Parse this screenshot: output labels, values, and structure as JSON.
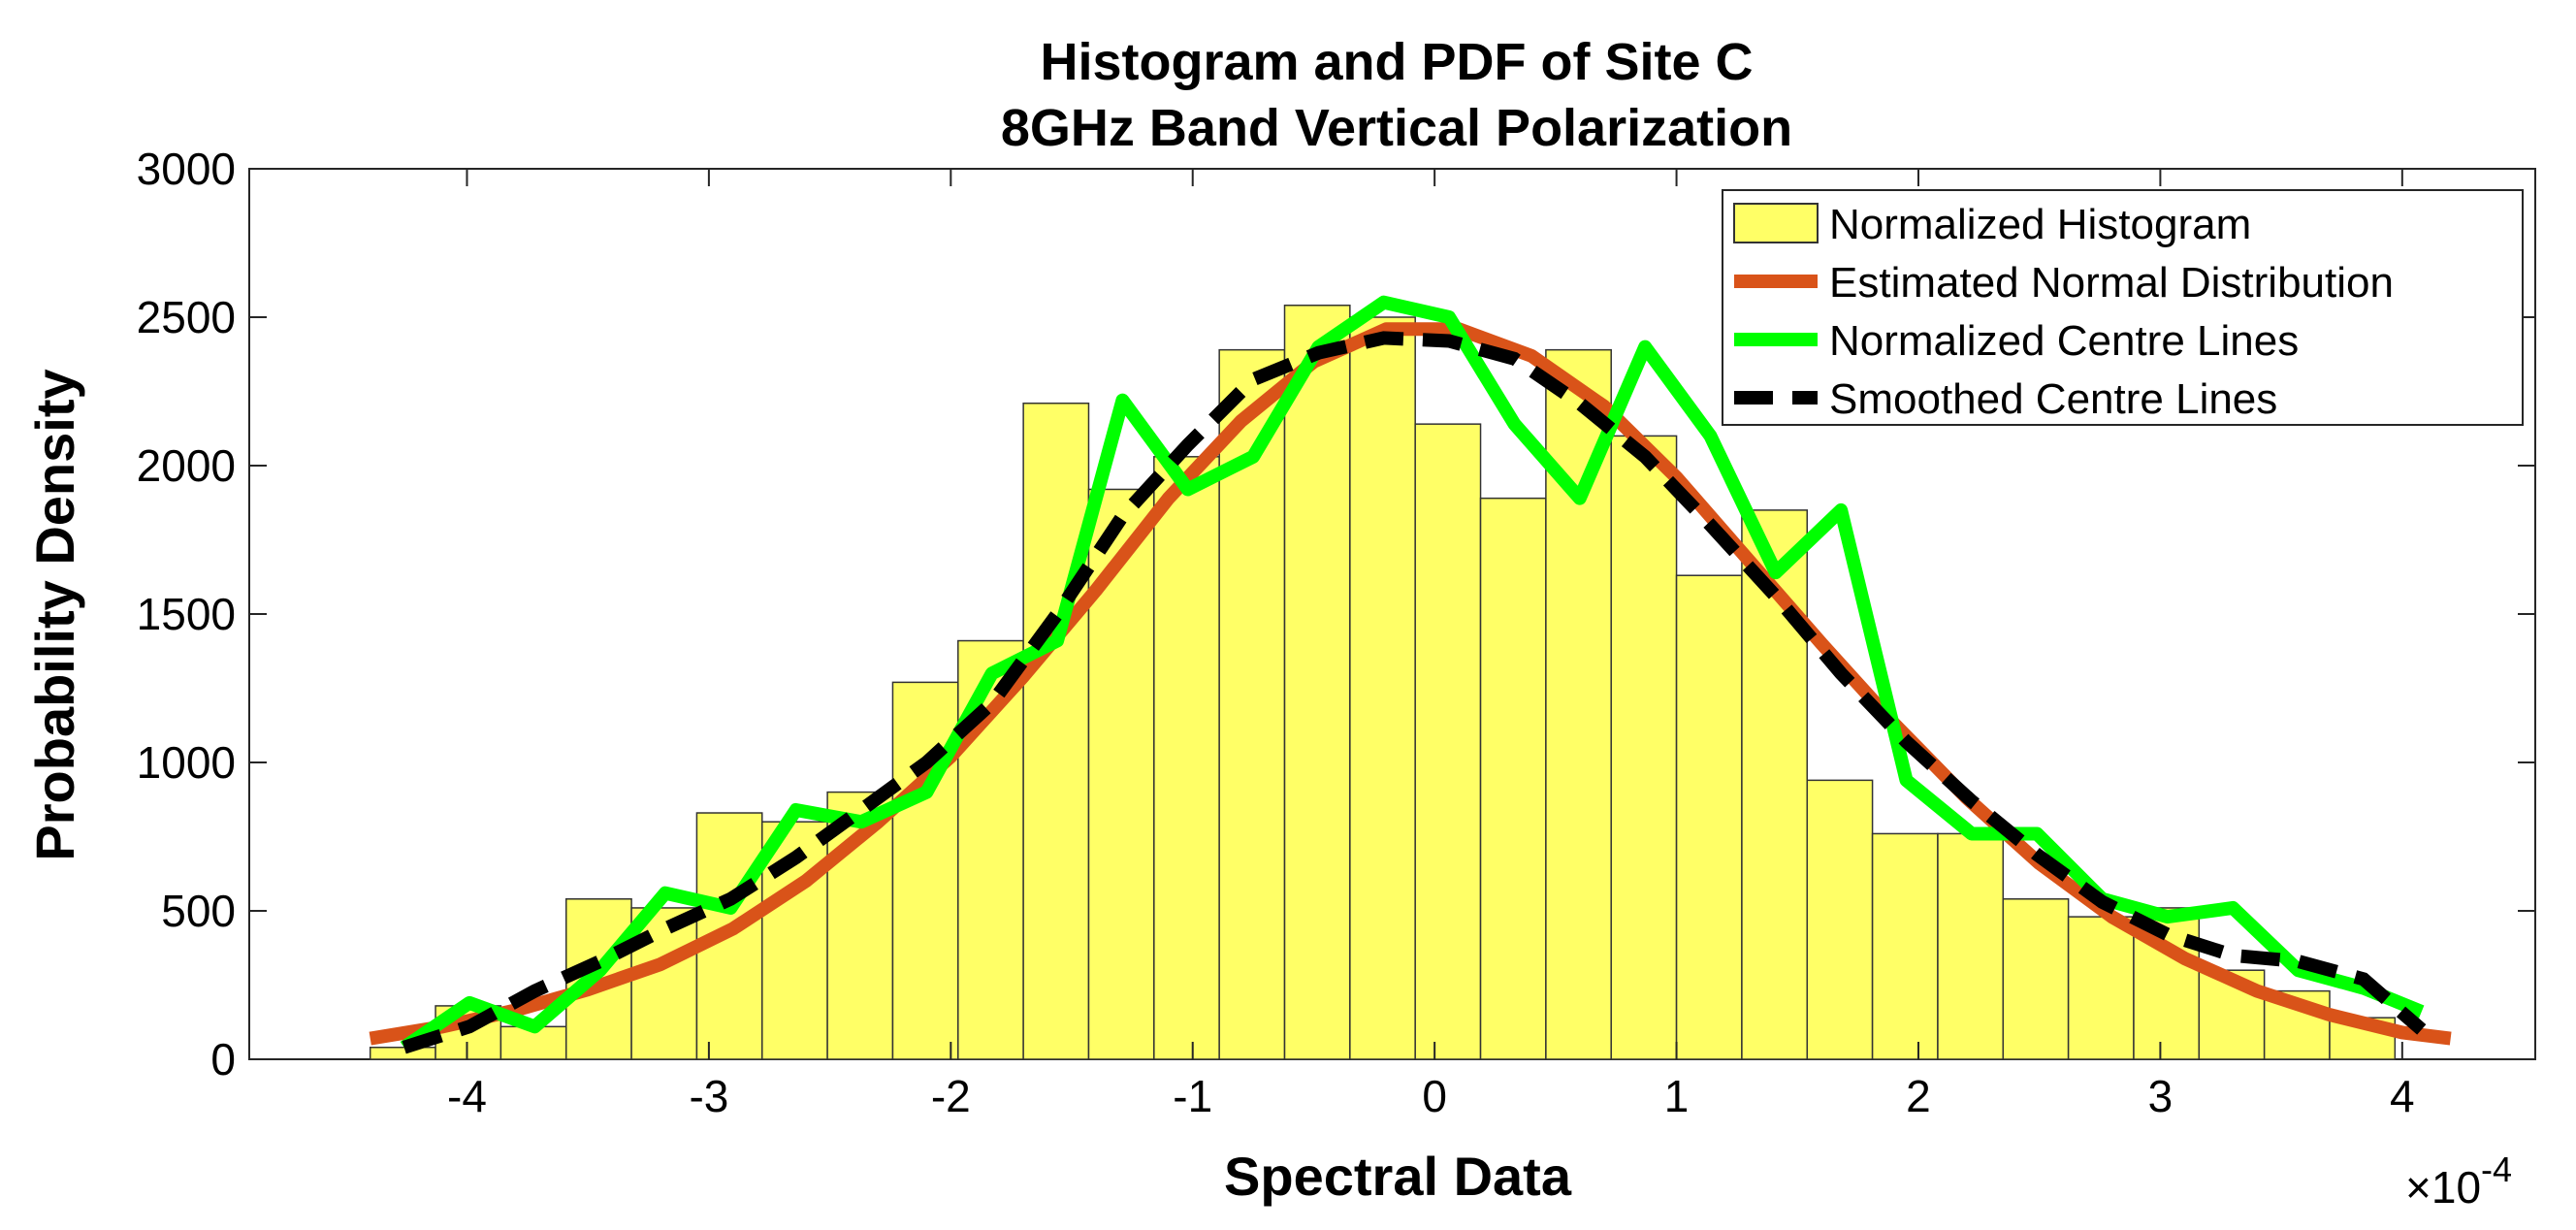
{
  "chart_data": {
    "type": "bar",
    "title": "Histogram and PDF of Site C",
    "subtitle": "8GHz Band Vertical Polarization",
    "xlabel": "Spectral Data",
    "ylabel": "Probability Density",
    "x_multiplier_base": "×10",
    "x_multiplier_exp": "-4",
    "xlim": [
      -4.9,
      4.55
    ],
    "ylim": [
      0,
      3000
    ],
    "xticks": [
      -4,
      -3,
      -2,
      -1,
      0,
      1,
      2,
      3,
      4
    ],
    "xtick_labels": [
      "-4",
      "-3",
      "-2",
      "-1",
      "0",
      "1",
      "2",
      "3",
      "4"
    ],
    "yticks": [
      0,
      500,
      1000,
      1500,
      2000,
      2500,
      3000
    ],
    "ytick_labels": [
      "0",
      "500",
      "1000",
      "1500",
      "2000",
      "2500",
      "3000"
    ],
    "grid": false,
    "legend_position": "top-right",
    "colors": {
      "histogram_fill": "#ffff66",
      "histogram_edge": "#333333",
      "normal": "#d95319",
      "centre": "#00ff00",
      "smoothed": "#000000"
    },
    "histogram": {
      "name": "Normalized Histogram",
      "bin_edges": [
        -4.4,
        -4.13,
        -3.86,
        -3.59,
        -3.32,
        -3.05,
        -2.78,
        -2.51,
        -2.24,
        -1.97,
        -1.7,
        -1.43,
        -1.16,
        -0.89,
        -0.62,
        -0.35,
        -0.08,
        0.19,
        0.46,
        0.73,
        1.0,
        1.27,
        1.54,
        1.81,
        2.08,
        2.35,
        2.62,
        2.89,
        3.16,
        3.43,
        3.7,
        3.97,
        4.24
      ],
      "values": [
        40,
        180,
        110,
        540,
        510,
        830,
        800,
        900,
        1270,
        1410,
        2210,
        1920,
        2030,
        2390,
        2540,
        2500,
        2140,
        1890,
        2390,
        2100,
        1630,
        1850,
        940,
        760,
        760,
        540,
        480,
        510,
        300,
        230,
        140,
        0
      ]
    },
    "series": [
      {
        "name": "Estimated Normal Distribution",
        "x": [
          -4.4,
          -4.1,
          -3.8,
          -3.5,
          -3.2,
          -2.9,
          -2.6,
          -2.3,
          -2.0,
          -1.7,
          -1.4,
          -1.1,
          -0.8,
          -0.5,
          -0.2,
          0.1,
          0.4,
          0.7,
          1.0,
          1.3,
          1.6,
          1.9,
          2.2,
          2.5,
          2.8,
          3.1,
          3.4,
          3.7,
          4.0,
          4.2
        ],
        "values": [
          70,
          110,
          165,
          235,
          320,
          440,
          600,
          800,
          1020,
          1290,
          1580,
          1890,
          2150,
          2350,
          2460,
          2460,
          2370,
          2200,
          1960,
          1680,
          1400,
          1130,
          880,
          660,
          480,
          340,
          230,
          150,
          90,
          70
        ]
      },
      {
        "name": "Normalized Centre Lines",
        "x": [
          -4.26,
          -3.99,
          -3.72,
          -3.45,
          -3.18,
          -2.91,
          -2.64,
          -2.37,
          -2.1,
          -1.83,
          -1.56,
          -1.29,
          -1.02,
          -0.75,
          -0.48,
          -0.21,
          0.06,
          0.33,
          0.6,
          0.87,
          1.14,
          1.41,
          1.68,
          1.95,
          2.22,
          2.49,
          2.76,
          3.03,
          3.3,
          3.57,
          3.84,
          4.08
        ],
        "values": [
          40,
          190,
          110,
          300,
          560,
          510,
          840,
          800,
          900,
          1300,
          1410,
          2220,
          1920,
          2030,
          2400,
          2550,
          2500,
          2140,
          1890,
          2400,
          2100,
          1640,
          1850,
          940,
          760,
          760,
          540,
          480,
          510,
          300,
          240,
          160
        ]
      },
      {
        "name": "Smoothed Centre Lines",
        "x": [
          -4.26,
          -3.99,
          -3.72,
          -3.45,
          -3.18,
          -2.91,
          -2.64,
          -2.37,
          -2.1,
          -1.83,
          -1.56,
          -1.29,
          -1.02,
          -0.75,
          -0.48,
          -0.21,
          0.06,
          0.33,
          0.6,
          0.87,
          1.14,
          1.41,
          1.68,
          1.95,
          2.22,
          2.49,
          2.76,
          3.03,
          3.3,
          3.57,
          3.84,
          4.08
        ],
        "values": [
          40,
          110,
          230,
          330,
          440,
          540,
          680,
          840,
          1000,
          1200,
          1500,
          1830,
          2070,
          2290,
          2380,
          2430,
          2420,
          2360,
          2210,
          2030,
          1800,
          1560,
          1300,
          1070,
          870,
          690,
          530,
          420,
          350,
          330,
          270,
          100
        ]
      }
    ]
  }
}
